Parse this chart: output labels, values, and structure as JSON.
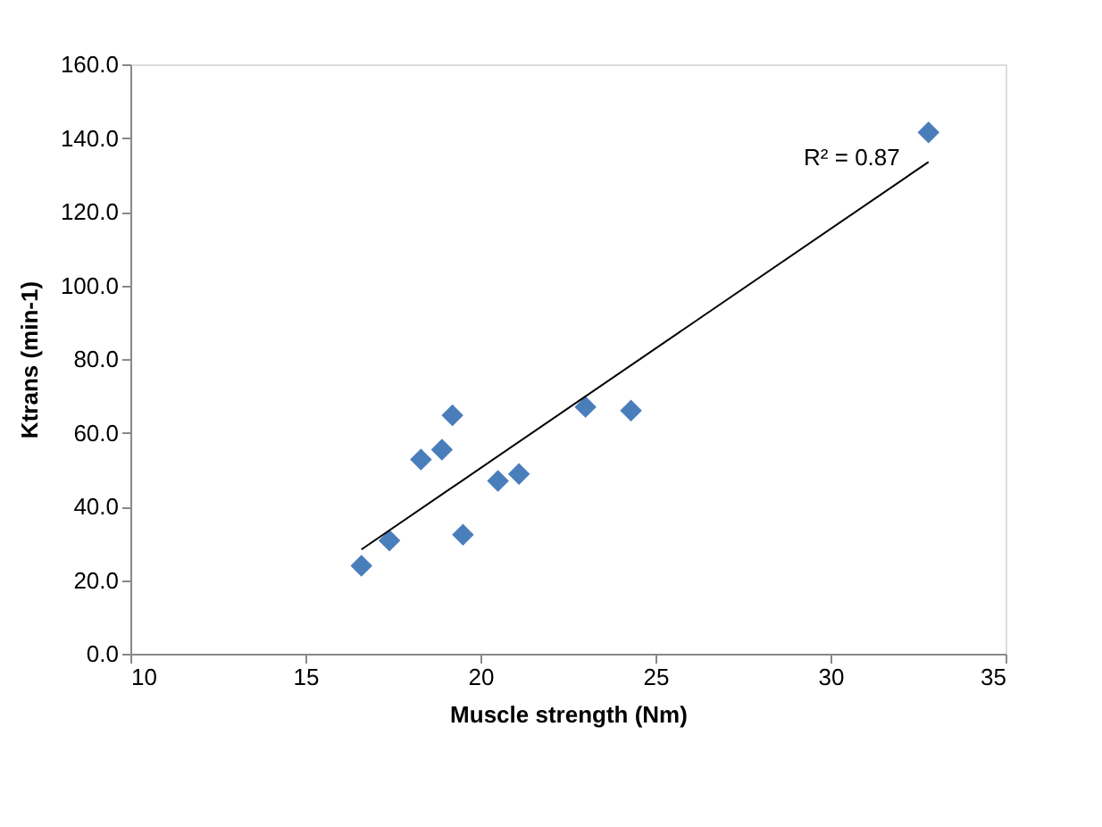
{
  "chart_data": {
    "type": "scatter",
    "xlabel": "Muscle strength (Nm)",
    "ylabel": "Ktrans (min-1)",
    "xlim": [
      10,
      35
    ],
    "xticks": [
      10,
      15,
      20,
      25,
      30,
      35
    ],
    "ylim": [
      0,
      160
    ],
    "yticks": [
      {
        "value": 0,
        "label": "0.0"
      },
      {
        "value": 20,
        "label": "20.0"
      },
      {
        "value": 40,
        "label": "40.0"
      },
      {
        "value": 60,
        "label": "60.0"
      },
      {
        "value": 80,
        "label": "80.0"
      },
      {
        "value": 100,
        "label": "100.0"
      },
      {
        "value": 120,
        "label": "120.0"
      },
      {
        "value": 140,
        "label": "140.0"
      },
      {
        "value": 160,
        "label": "160.0"
      }
    ],
    "grid": false,
    "legend": false,
    "series": [
      {
        "marker": "diamond",
        "color": "#4a7ebb",
        "x": [
          16.6,
          17.4,
          19.5,
          18.3,
          18.9,
          19.2,
          20.5,
          21.1,
          23.0,
          24.3,
          32.8
        ],
        "values": [
          23.9,
          30.7,
          32.3,
          52.7,
          55.4,
          64.7,
          46.9,
          48.8,
          67.0,
          66.0,
          141.5
        ]
      },
      {
        "type": "line",
        "marker": "none",
        "color": "#000000",
        "x": [
          16.6,
          32.8
        ],
        "values": [
          28.3,
          133.5
        ]
      }
    ],
    "annotations": [
      "R² = 0.87"
    ]
  }
}
